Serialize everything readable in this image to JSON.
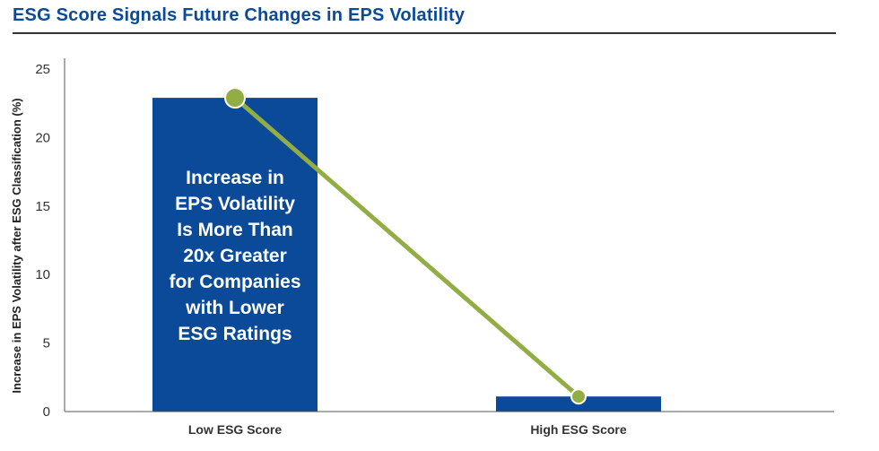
{
  "title": "ESG Score Signals Future Changes in EPS Volatility",
  "chart_data": {
    "type": "bar",
    "title": "ESG Score Signals Future Changes in EPS Volatility",
    "xlabel": "",
    "ylabel": "Increase in EPS Volatility after ESG Classification (%)",
    "categories": [
      "Low ESG Score",
      "High ESG Score"
    ],
    "values": [
      22.9,
      1.1
    ],
    "ylim": [
      0,
      25
    ],
    "yticks": [
      "0",
      "5",
      "10",
      "15",
      "20",
      "25"
    ],
    "grid": false,
    "legend": "none",
    "overlay_line": {
      "values": [
        22.9,
        1.1
      ],
      "marker": "circle"
    },
    "annotation_lines": [
      "Increase in",
      "EPS Volatility",
      "Is More Than",
      "20x Greater",
      "for Companies",
      "with Lower",
      "ESG Ratings"
    ],
    "colors": {
      "bar": "#0a4a99",
      "line": "#93ad45",
      "title": "#0a4a99",
      "annotation": "#ffffff"
    }
  }
}
